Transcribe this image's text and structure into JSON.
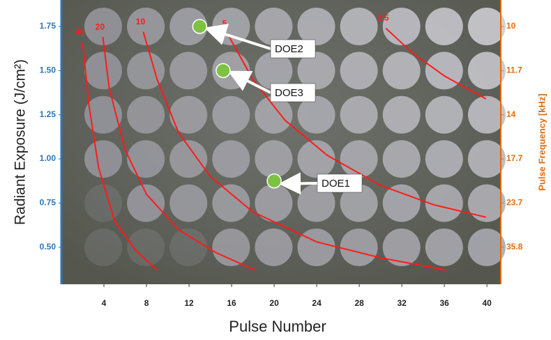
{
  "chart_data": {
    "type": "scatter",
    "x_label": "Pulse Number",
    "y_label": "Radiant Exposure (J/cm²)",
    "y2_label": "Pulse Frequency [kHz]",
    "xlim": [
      0,
      41.3
    ],
    "xticks": [
      4,
      8,
      12,
      16,
      20,
      24,
      28,
      32,
      36,
      40
    ],
    "ylim": [
      0.29,
      1.9
    ],
    "yticks": [
      {
        "value": 0.5,
        "label": "0.50"
      },
      {
        "value": 0.75,
        "label": "0.75"
      },
      {
        "value": 1.0,
        "label": "1.00"
      },
      {
        "value": 1.25,
        "label": "1.25"
      },
      {
        "value": 1.5,
        "label": "1.50"
      },
      {
        "value": 1.75,
        "label": "1.75"
      }
    ],
    "y2ticks": [
      35.8,
      23.7,
      17.7,
      14,
      11.7,
      10
    ],
    "point_color": "#7dc242",
    "points": [
      {
        "label": "DOE1",
        "x": 20,
        "y": 0.875
      },
      {
        "label": "DOE2",
        "x": 13,
        "y": 1.75
      },
      {
        "label": "DOE3",
        "x": 15.2,
        "y": 1.5
      }
    ],
    "curves": [
      {
        "name": "40",
        "color": "#ff1a1a",
        "x": [
          2.0,
          2.6,
          3.5,
          5,
          7,
          9
        ],
        "values": [
          1.66,
          1.3,
          0.95,
          0.65,
          0.48,
          0.37
        ]
      },
      {
        "name": "20",
        "color": "#ff1a1a",
        "x": [
          3.9,
          4.5,
          6,
          8,
          11,
          14.5,
          18.2
        ],
        "values": [
          1.69,
          1.4,
          1.05,
          0.8,
          0.6,
          0.47,
          0.37
        ]
      },
      {
        "name": "10",
        "color": "#ff1a1a",
        "x": [
          7.7,
          9,
          11,
          14,
          18,
          24,
          30,
          36.2
        ],
        "values": [
          1.72,
          1.45,
          1.15,
          0.9,
          0.7,
          0.53,
          0.44,
          0.37
        ]
      },
      {
        "name": "5",
        "color": "#ff1a1a",
        "x": [
          15.6,
          18,
          21,
          25,
          30,
          35,
          39.9
        ],
        "values": [
          1.71,
          1.45,
          1.22,
          1.02,
          0.85,
          0.74,
          0.67
        ]
      },
      {
        "name": "2.5",
        "color": "#ff1a1a",
        "x": [
          30.5,
          33,
          36,
          39.9
        ],
        "values": [
          1.74,
          1.6,
          1.47,
          1.34
        ]
      }
    ]
  }
}
